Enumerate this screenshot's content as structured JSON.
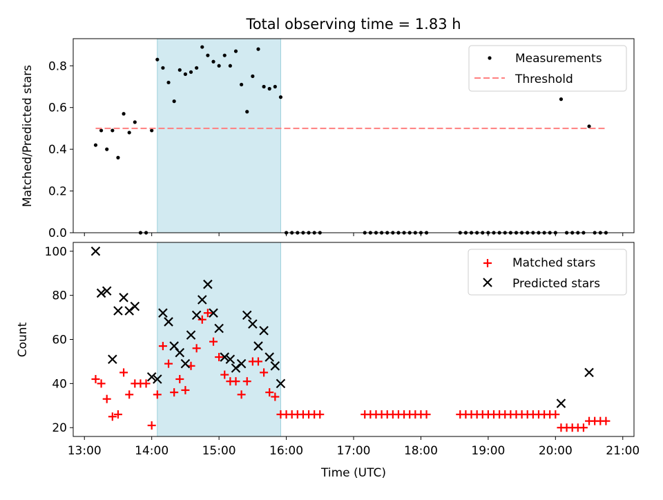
{
  "chart_data": [
    {
      "type": "scatter",
      "title": "Total observing time = 1.83 h",
      "ylabel": "Matched/Predicted stars",
      "xlabel": "",
      "xlim": [
        "13:00",
        "21:00"
      ],
      "ylim": [
        0,
        0.93
      ],
      "yticks": [
        "0.0",
        "0.2",
        "0.4",
        "0.6",
        "0.8"
      ],
      "shaded_interval": [
        "14:05",
        "15:55"
      ],
      "legend_position": "top-right",
      "series": [
        {
          "name": "Measurements",
          "marker": "dot",
          "color": "#000000",
          "points": [
            [
              "13:10",
              0.42
            ],
            [
              "13:15",
              0.49
            ],
            [
              "13:20",
              0.4
            ],
            [
              "13:25",
              0.49
            ],
            [
              "13:30",
              0.36
            ],
            [
              "13:35",
              0.57
            ],
            [
              "13:40",
              0.48
            ],
            [
              "13:45",
              0.53
            ],
            [
              "13:50",
              0.0
            ],
            [
              "13:55",
              0.0
            ],
            [
              "14:00",
              0.49
            ],
            [
              "14:05",
              0.83
            ],
            [
              "14:10",
              0.79
            ],
            [
              "14:15",
              0.72
            ],
            [
              "14:20",
              0.63
            ],
            [
              "14:25",
              0.78
            ],
            [
              "14:30",
              0.76
            ],
            [
              "14:35",
              0.77
            ],
            [
              "14:40",
              0.79
            ],
            [
              "14:45",
              0.89
            ],
            [
              "14:50",
              0.85
            ],
            [
              "14:55",
              0.82
            ],
            [
              "15:00",
              0.8
            ],
            [
              "15:05",
              0.85
            ],
            [
              "15:10",
              0.8
            ],
            [
              "15:15",
              0.87
            ],
            [
              "15:20",
              0.71
            ],
            [
              "15:25",
              0.58
            ],
            [
              "15:30",
              0.75
            ],
            [
              "15:35",
              0.88
            ],
            [
              "15:40",
              0.7
            ],
            [
              "15:45",
              0.69
            ],
            [
              "15:50",
              0.7
            ],
            [
              "15:55",
              0.65
            ],
            [
              "16:00",
              0.0
            ],
            [
              "16:05",
              0.0
            ],
            [
              "16:10",
              0.0
            ],
            [
              "16:15",
              0.0
            ],
            [
              "16:20",
              0.0
            ],
            [
              "16:25",
              0.0
            ],
            [
              "16:30",
              0.0
            ],
            [
              "17:10",
              0.0
            ],
            [
              "17:15",
              0.0
            ],
            [
              "17:20",
              0.0
            ],
            [
              "17:25",
              0.0
            ],
            [
              "17:30",
              0.0
            ],
            [
              "17:35",
              0.0
            ],
            [
              "17:40",
              0.0
            ],
            [
              "17:45",
              0.0
            ],
            [
              "17:50",
              0.0
            ],
            [
              "17:55",
              0.0
            ],
            [
              "18:00",
              0.0
            ],
            [
              "18:05",
              0.0
            ],
            [
              "18:35",
              0.0
            ],
            [
              "18:40",
              0.0
            ],
            [
              "18:45",
              0.0
            ],
            [
              "18:50",
              0.0
            ],
            [
              "18:55",
              0.0
            ],
            [
              "19:00",
              0.0
            ],
            [
              "19:05",
              0.0
            ],
            [
              "19:10",
              0.0
            ],
            [
              "19:15",
              0.0
            ],
            [
              "19:20",
              0.0
            ],
            [
              "19:25",
              0.0
            ],
            [
              "19:30",
              0.0
            ],
            [
              "19:35",
              0.0
            ],
            [
              "19:40",
              0.0
            ],
            [
              "19:45",
              0.0
            ],
            [
              "19:50",
              0.0
            ],
            [
              "19:55",
              0.0
            ],
            [
              "20:00",
              0.0
            ],
            [
              "20:05",
              0.64
            ],
            [
              "20:10",
              0.0
            ],
            [
              "20:15",
              0.0
            ],
            [
              "20:20",
              0.0
            ],
            [
              "20:25",
              0.0
            ],
            [
              "20:30",
              0.51
            ],
            [
              "20:35",
              0.0
            ],
            [
              "20:40",
              0.0
            ],
            [
              "20:45",
              0.0
            ]
          ]
        },
        {
          "name": "Threshold",
          "style": "dashed-line",
          "color": "#ff7f7f",
          "points": [
            [
              "13:10",
              0.5
            ],
            [
              "20:45",
              0.5
            ]
          ]
        }
      ]
    },
    {
      "type": "scatter",
      "title": "",
      "ylabel": "Count",
      "xlabel": "Time (UTC)",
      "xlim": [
        "13:00",
        "21:00"
      ],
      "ylim": [
        16,
        104
      ],
      "yticks": [
        "20",
        "40",
        "60",
        "80",
        "100"
      ],
      "xticks": [
        "13:00",
        "14:00",
        "15:00",
        "16:00",
        "17:00",
        "18:00",
        "19:00",
        "20:00",
        "21:00"
      ],
      "shaded_interval": [
        "14:05",
        "15:55"
      ],
      "legend_position": "top-right",
      "series": [
        {
          "name": "Matched stars",
          "marker": "plus",
          "color": "#ff0000",
          "points": [
            [
              "13:10",
              42
            ],
            [
              "13:15",
              40
            ],
            [
              "13:20",
              33
            ],
            [
              "13:25",
              25
            ],
            [
              "13:30",
              26
            ],
            [
              "13:35",
              45
            ],
            [
              "13:40",
              35
            ],
            [
              "13:45",
              40
            ],
            [
              "13:50",
              40
            ],
            [
              "13:55",
              40
            ],
            [
              "14:00",
              21
            ],
            [
              "14:05",
              35
            ],
            [
              "14:10",
              57
            ],
            [
              "14:15",
              49
            ],
            [
              "14:20",
              36
            ],
            [
              "14:25",
              42
            ],
            [
              "14:30",
              37
            ],
            [
              "14:35",
              48
            ],
            [
              "14:40",
              56
            ],
            [
              "14:45",
              69
            ],
            [
              "14:50",
              72
            ],
            [
              "14:55",
              59
            ],
            [
              "15:00",
              52
            ],
            [
              "15:05",
              44
            ],
            [
              "15:10",
              41
            ],
            [
              "15:15",
              41
            ],
            [
              "15:20",
              35
            ],
            [
              "15:25",
              41
            ],
            [
              "15:30",
              50
            ],
            [
              "15:35",
              50
            ],
            [
              "15:40",
              45
            ],
            [
              "15:45",
              36
            ],
            [
              "15:50",
              34
            ],
            [
              "15:55",
              26
            ],
            [
              "16:00",
              26
            ],
            [
              "16:05",
              26
            ],
            [
              "16:10",
              26
            ],
            [
              "16:15",
              26
            ],
            [
              "16:20",
              26
            ],
            [
              "16:25",
              26
            ],
            [
              "16:30",
              26
            ],
            [
              "17:10",
              26
            ],
            [
              "17:15",
              26
            ],
            [
              "17:20",
              26
            ],
            [
              "17:25",
              26
            ],
            [
              "17:30",
              26
            ],
            [
              "17:35",
              26
            ],
            [
              "17:40",
              26
            ],
            [
              "17:45",
              26
            ],
            [
              "17:50",
              26
            ],
            [
              "17:55",
              26
            ],
            [
              "18:00",
              26
            ],
            [
              "18:05",
              26
            ],
            [
              "18:35",
              26
            ],
            [
              "18:40",
              26
            ],
            [
              "18:45",
              26
            ],
            [
              "18:50",
              26
            ],
            [
              "18:55",
              26
            ],
            [
              "19:00",
              26
            ],
            [
              "19:05",
              26
            ],
            [
              "19:10",
              26
            ],
            [
              "19:15",
              26
            ],
            [
              "19:20",
              26
            ],
            [
              "19:25",
              26
            ],
            [
              "19:30",
              26
            ],
            [
              "19:35",
              26
            ],
            [
              "19:40",
              26
            ],
            [
              "19:45",
              26
            ],
            [
              "19:50",
              26
            ],
            [
              "19:55",
              26
            ],
            [
              "20:00",
              26
            ],
            [
              "20:05",
              20
            ],
            [
              "20:10",
              20
            ],
            [
              "20:15",
              20
            ],
            [
              "20:20",
              20
            ],
            [
              "20:25",
              20
            ],
            [
              "20:30",
              23
            ],
            [
              "20:35",
              23
            ],
            [
              "20:40",
              23
            ],
            [
              "20:45",
              23
            ]
          ]
        },
        {
          "name": "Predicted stars",
          "marker": "x",
          "color": "#000000",
          "points": [
            [
              "13:10",
              100
            ],
            [
              "13:15",
              81
            ],
            [
              "13:20",
              82
            ],
            [
              "13:25",
              51
            ],
            [
              "13:30",
              73
            ],
            [
              "13:35",
              79
            ],
            [
              "13:40",
              73
            ],
            [
              "13:45",
              75
            ],
            [
              "14:00",
              43
            ],
            [
              "14:05",
              42
            ],
            [
              "14:10",
              72
            ],
            [
              "14:15",
              68
            ],
            [
              "14:20",
              57
            ],
            [
              "14:25",
              54
            ],
            [
              "14:30",
              49
            ],
            [
              "14:35",
              62
            ],
            [
              "14:40",
              71
            ],
            [
              "14:45",
              78
            ],
            [
              "14:50",
              85
            ],
            [
              "14:55",
              72
            ],
            [
              "15:00",
              65
            ],
            [
              "15:05",
              52
            ],
            [
              "15:10",
              51
            ],
            [
              "15:15",
              47
            ],
            [
              "15:20",
              49
            ],
            [
              "15:25",
              71
            ],
            [
              "15:30",
              67
            ],
            [
              "15:35",
              57
            ],
            [
              "15:40",
              64
            ],
            [
              "15:45",
              52
            ],
            [
              "15:50",
              48
            ],
            [
              "15:55",
              40
            ],
            [
              "20:05",
              31
            ],
            [
              "20:30",
              45
            ]
          ]
        }
      ]
    }
  ]
}
